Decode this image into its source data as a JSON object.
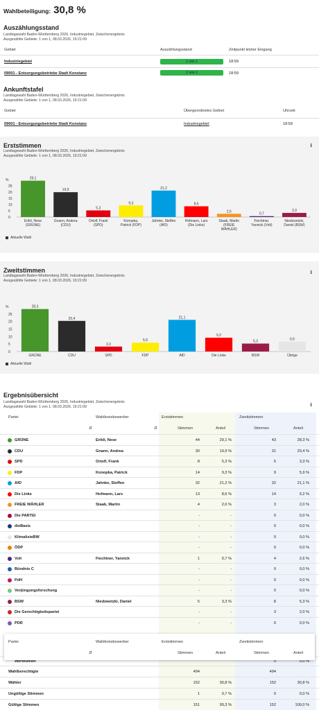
{
  "wahlbeteiligung": {
    "label": "Wahlbeteiligung:",
    "value": "30,8 %"
  },
  "auszaehlung": {
    "title": "Auszählungsstand",
    "subtitle": "Landtagswahl Baden-Württemberg 2026, Industriegebiet, Zwischenergebnis",
    "subtitle2": "Ausgezählte Gebiete: 1 von 1, 08.03.2026, 19:21:09",
    "headers": [
      "Gebiet",
      "Auszählungsstand",
      "Zeitpunkt letzter Eingang"
    ],
    "rows": [
      {
        "gebiet": "Industriegebiet",
        "stand": "1 von 1",
        "progress": 1.0,
        "zeit": "18:59"
      },
      {
        "gebiet": "09001 - Entsorgungsbetriebe Stadt Konstanz",
        "stand": "1 von 1",
        "progress": 1.0,
        "zeit": "18:59"
      }
    ]
  },
  "ankunft": {
    "title": "Ankunftstafel",
    "subtitle": "Landtagswahl Baden-Württemberg 2026, Industriegebiet, Zwischenergebnis",
    "subtitle2": "Ausgezählte Gebiete: 1 von 1, 08.03.2026, 19:21:09",
    "headers": [
      "Gebiet",
      "Übergeordnetes Gebiet",
      "Uhrzeit"
    ],
    "row": {
      "gebiet": "09001 - Entsorgungsbetriebe Stadt Konstanz",
      "parent": "Industriegebiet",
      "zeit": "18:59"
    }
  },
  "chart_data": [
    {
      "type": "bar",
      "title": "Erststimmen",
      "subtitle": "Landtagswahl Baden-Württemberg 2026, Industriegebiet, Zwischenergebnis",
      "subtitle2": "Ausgezählte Gebiete: 1 von 1, 08.03.2026, 19:21:09",
      "ylabel": "%",
      "ylim": [
        0,
        30
      ],
      "yticks": [
        0,
        5,
        10,
        15,
        20,
        25
      ],
      "categories": [
        [
          "Erikli, Nese",
          "(GRÜNE)"
        ],
        [
          "Gnann, Andrea",
          "(CDU)"
        ],
        [
          "Ortolf, Frank",
          "(SPD)"
        ],
        [
          "Konopka,",
          "Patrick (FDP)"
        ],
        [
          "Jahnke, Steffen",
          "(AfD)"
        ],
        [
          "Hofmann, Lars",
          "(Die Linke)"
        ],
        [
          "Staab, Martin",
          "(FREIE",
          "WÄHLER)"
        ],
        [
          "Fiechtner,",
          "Yannick (Volt)"
        ],
        [
          "Niedzwetzki,",
          "Daniel (BSW)"
        ]
      ],
      "values": [
        29.1,
        19.9,
        5.3,
        9.3,
        21.2,
        8.6,
        2.6,
        0.7,
        3.3
      ],
      "labels": [
        "29,1",
        "19,9",
        "5,3",
        "9,3",
        "21,2",
        "8,6",
        "2,6",
        "0,7",
        "3,3"
      ],
      "colors": [
        "#46962b",
        "#2b2b2b",
        "#e3000f",
        "#ffed00",
        "#009ee0",
        "#ff0000",
        "#f7941d",
        "#502379",
        "#9b1c47"
      ],
      "legend": "Aktuelle Wahl",
      "legend_position": "bottom-left",
      "grid": false
    },
    {
      "type": "bar",
      "title": "Zweitstimmen",
      "subtitle": "Landtagswahl Baden-Württemberg 2026, Industriegebiet, Zwischenergebnis",
      "subtitle2": "Ausgezählte Gebiete: 1 von 1, 08.03.2026, 19:21:09",
      "ylabel": "%",
      "ylim": [
        0,
        30
      ],
      "yticks": [
        0,
        5,
        10,
        15,
        20,
        25
      ],
      "categories": [
        [
          "GRÜNE"
        ],
        [
          "CDU"
        ],
        [
          "SPD"
        ],
        [
          "FDP"
        ],
        [
          "AfD"
        ],
        [
          "Die Linke"
        ],
        [
          "BSW"
        ],
        [
          "Übrige"
        ]
      ],
      "values": [
        28.3,
        20.4,
        3.3,
        5.9,
        21.1,
        9.2,
        5.3,
        6.6
      ],
      "labels": [
        "28,3",
        "20,4",
        "3,3",
        "5,9",
        "21,1",
        "9,2",
        "5,3",
        "6,6"
      ],
      "colors": [
        "#46962b",
        "#2b2b2b",
        "#e3000f",
        "#ffed00",
        "#009ee0",
        "#ff0000",
        "#9b1c47",
        "#e6e6e6"
      ],
      "legend": "Aktuelle Wahl",
      "legend_position": "bottom-left",
      "grid": false
    }
  ],
  "ergebnis": {
    "title": "Ergebnisübersicht",
    "subtitle": "Landtagswahl Baden-Württemberg 2026, Industriegebiet, Zwischenergebnis",
    "subtitle2": "Ausgezählte Gebiete: 1 von 1, 08.03.2026, 19:21:09",
    "headers": {
      "partei": "Partei",
      "bewerber": "Wahlkreisbewerber",
      "erst": "Erststimmen",
      "zweit": "Zweitstimmen",
      "stimmen": "Stimmen",
      "anteil": "Anteil"
    },
    "rows": [
      {
        "partei": "GRÜNE",
        "color": "#46962b",
        "bewerber": "Erikli, Nese",
        "es": "44",
        "ea": "29,1 %",
        "zs": "43",
        "za": "28,3 %"
      },
      {
        "partei": "CDU",
        "color": "#2b2b2b",
        "bewerber": "Gnann, Andrea",
        "es": "30",
        "ea": "19,9 %",
        "zs": "31",
        "za": "20,4 %"
      },
      {
        "partei": "SPD",
        "color": "#e3000f",
        "bewerber": "Ortolf, Frank",
        "es": "8",
        "ea": "5,3 %",
        "zs": "5",
        "za": "3,3 %"
      },
      {
        "partei": "FDP",
        "color": "#ffed00",
        "bewerber": "Konopka, Patrick",
        "es": "14",
        "ea": "9,3 %",
        "zs": "9",
        "za": "5,9 %"
      },
      {
        "partei": "AfD",
        "color": "#009ee0",
        "bewerber": "Jahnke, Steffen",
        "es": "32",
        "ea": "21,2 %",
        "zs": "32",
        "za": "21,1 %"
      },
      {
        "partei": "Die Linke",
        "color": "#ff0000",
        "bewerber": "Hofmann, Lars",
        "es": "13",
        "ea": "8,6 %",
        "zs": "14",
        "za": "9,2 %"
      },
      {
        "partei": "FREIE WÄHLER",
        "color": "#f7941d",
        "bewerber": "Staab, Martin",
        "es": "4",
        "ea": "2,6 %",
        "zs": "3",
        "za": "2,0 %"
      },
      {
        "partei": "Die PARTEI",
        "color": "#b5003b",
        "bewerber": "",
        "es": "-",
        "ea": "-",
        "zs": "0",
        "za": "0,0 %"
      },
      {
        "partei": "dieBasis",
        "color": "#1a3b7a",
        "bewerber": "",
        "es": "-",
        "ea": "-",
        "zs": "0",
        "za": "0,0 %"
      },
      {
        "partei": "KlimalisteBW",
        "color": "#e8e8e8",
        "bewerber": "",
        "es": "-",
        "ea": "-",
        "zs": "0",
        "za": "0,0 %"
      },
      {
        "partei": "ÖDP",
        "color": "#f07c00",
        "bewerber": "",
        "es": "-",
        "ea": "-",
        "zs": "0",
        "za": "0,0 %"
      },
      {
        "partei": "Volt",
        "color": "#502379",
        "bewerber": "Fiechtner, Yannick",
        "es": "1",
        "ea": "0,7 %",
        "zs": "4",
        "za": "2,6 %"
      },
      {
        "partei": "Bündnis C",
        "color": "#1e5fa8",
        "bewerber": "",
        "es": "-",
        "ea": "-",
        "zs": "0",
        "za": "0,0 %"
      },
      {
        "partei": "PdH",
        "color": "#c2185b",
        "bewerber": "",
        "es": "-",
        "ea": "-",
        "zs": "0",
        "za": "0,0 %"
      },
      {
        "partei": "Verjüngungsforschung",
        "color": "#7cc576",
        "bewerber": "",
        "es": "-",
        "ea": "-",
        "zs": "0",
        "za": "0,0 %"
      },
      {
        "partei": "BSW",
        "color": "#9b1c47",
        "bewerber": "Niedzwetzki, Daniel",
        "es": "5",
        "ea": "3,3 %",
        "zs": "8",
        "za": "5,3 %"
      },
      {
        "partei": "Die Gerechtigkeitspartei",
        "color": "#c62828",
        "bewerber": "",
        "es": "-",
        "ea": "-",
        "zs": "3",
        "za": "2,0 %"
      },
      {
        "partei": "PDR",
        "color": "#7e57c2",
        "bewerber": "",
        "es": "-",
        "ea": "-",
        "zs": "0",
        "za": "0,0 %"
      }
    ],
    "hidden_row": {
      "partei": "Werteunion",
      "zs": "0",
      "za": "0,0 %"
    },
    "summary": [
      {
        "label": "Wahlberechtigte",
        "es": "494",
        "ea": "",
        "zs": "494",
        "za": ""
      },
      {
        "label": "Wähler",
        "es": "152",
        "ea": "30,8 %",
        "zs": "152",
        "za": "30,8 %"
      },
      {
        "label": "Ungültige Stimmen",
        "es": "1",
        "ea": "0,7 %",
        "zs": "0",
        "za": "0,0 %"
      },
      {
        "label": "Gültige Stimmen",
        "es": "151",
        "ea": "99,3 %",
        "zs": "152",
        "za": "100,0 %"
      }
    ]
  }
}
